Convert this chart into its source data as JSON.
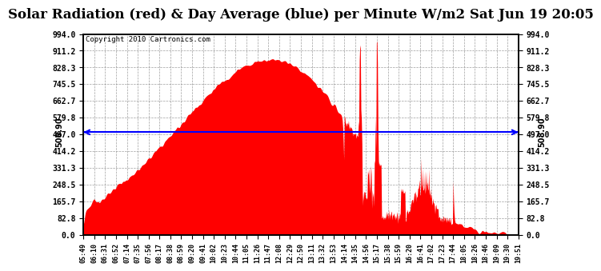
{
  "title": "Solar Radiation (red) & Day Average (blue) per Minute W/m2 Sat Jun 19 20:05",
  "copyright": "Copyright 2010 Cartronics.com",
  "day_average": 508.9,
  "y_max": 994.0,
  "y_min": 0.0,
  "y_ticks": [
    0.0,
    82.8,
    165.7,
    248.5,
    331.3,
    414.2,
    497.0,
    579.8,
    662.7,
    745.5,
    828.3,
    911.2,
    994.0
  ],
  "x_labels": [
    "05:49",
    "06:10",
    "06:31",
    "06:52",
    "07:14",
    "07:35",
    "07:56",
    "08:17",
    "08:38",
    "08:59",
    "09:20",
    "09:41",
    "10:02",
    "10:23",
    "10:44",
    "11:05",
    "11:26",
    "11:47",
    "12:08",
    "12:29",
    "12:50",
    "13:11",
    "13:32",
    "13:53",
    "14:14",
    "14:35",
    "14:56",
    "15:17",
    "15:38",
    "15:59",
    "16:20",
    "16:41",
    "17:02",
    "17:23",
    "17:44",
    "18:05",
    "18:26",
    "18:46",
    "19:09",
    "19:30",
    "19:51"
  ],
  "bg_color": "#ffffff",
  "fill_color": "#ff0000",
  "line_color": "#0000ff",
  "grid_color": "#888888",
  "title_fontsize": 12,
  "annotation_fontsize": 7
}
